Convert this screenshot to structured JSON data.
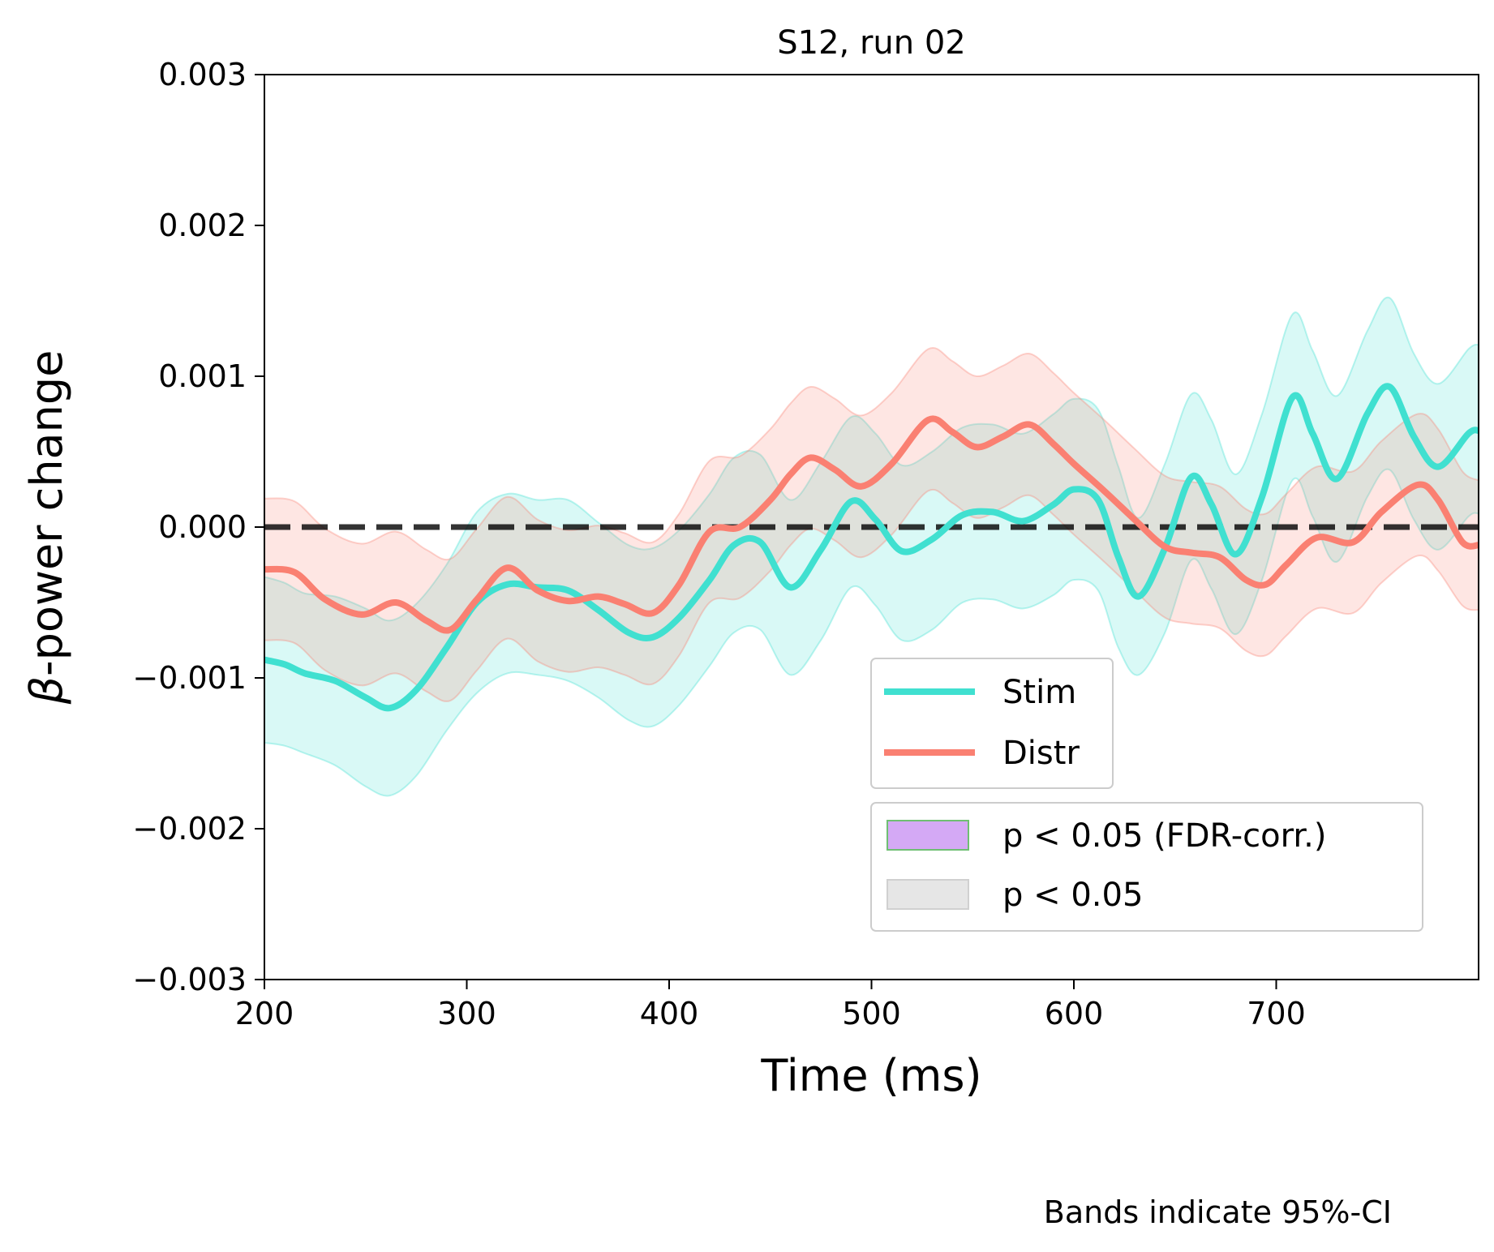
{
  "chart_data": {
    "type": "line",
    "title": "S12, run 02",
    "xlabel": "Time (ms)",
    "ylabel": "-power change",
    "ylabel_symbol": "β",
    "xlim": [
      200,
      800
    ],
    "ylim": [
      -0.003,
      0.003
    ],
    "xticks": [
      200,
      300,
      400,
      500,
      600,
      700
    ],
    "xtick_labels": [
      "200",
      "300",
      "400",
      "500",
      "600",
      "700"
    ],
    "yticks": [
      -0.003,
      -0.002,
      -0.001,
      0.0,
      0.001,
      0.002,
      0.003
    ],
    "ytick_labels": [
      "−0.003",
      "−0.002",
      "−0.001",
      "0.000",
      "0.001",
      "0.002",
      "0.003"
    ],
    "reference_line": {
      "y": 0.0,
      "style": "dashed",
      "color": "#000000"
    },
    "note": "Bands indicate 95%-CI",
    "series": [
      {
        "name": "Stim",
        "color": "#40E0D0",
        "band_color": "#40E0D0",
        "x": [
          200,
          210,
          220,
          235,
          250,
          262,
          275,
          290,
          305,
          320,
          335,
          350,
          365,
          380,
          392,
          405,
          420,
          432,
          445,
          460,
          475,
          490,
          502,
          515,
          530,
          545,
          560,
          575,
          590,
          600,
          612,
          622,
          632,
          645,
          658,
          668,
          680,
          693,
          708,
          718,
          730,
          745,
          756,
          768,
          780,
          795,
          800
        ],
        "y": [
          -0.00088,
          -0.00091,
          -0.00097,
          -0.00102,
          -0.00113,
          -0.0012,
          -0.00108,
          -0.0008,
          -0.0005,
          -0.00038,
          -0.0004,
          -0.00042,
          -0.00055,
          -0.0007,
          -0.00073,
          -0.0006,
          -0.00035,
          -0.00012,
          -0.0001,
          -0.0004,
          -0.00015,
          0.00017,
          5e-05,
          -0.00016,
          -8e-05,
          8e-05,
          0.0001,
          4e-05,
          0.00015,
          0.00025,
          0.00018,
          -0.0002,
          -0.00046,
          -0.00014,
          0.00033,
          0.00015,
          -0.00018,
          0.0002,
          0.00086,
          0.00062,
          0.00032,
          0.00075,
          0.00093,
          0.0006,
          0.0004,
          0.00062,
          0.00064
        ],
        "lower": [
          -0.00143,
          -0.00145,
          -0.0015,
          -0.00158,
          -0.00172,
          -0.00178,
          -0.00165,
          -0.00135,
          -0.0011,
          -0.00097,
          -0.00098,
          -0.00102,
          -0.00113,
          -0.00128,
          -0.00132,
          -0.00118,
          -0.00092,
          -0.0007,
          -0.00068,
          -0.00098,
          -0.00075,
          -0.0004,
          -0.00052,
          -0.00075,
          -0.00068,
          -0.0005,
          -0.00048,
          -0.00054,
          -0.00045,
          -0.00035,
          -0.00042,
          -0.0008,
          -0.00098,
          -0.0007,
          -0.00022,
          -0.00041,
          -0.00071,
          -0.00035,
          0.00031,
          7e-05,
          -0.00023,
          0.0002,
          0.00038,
          5e-05,
          -0.00015,
          7e-05,
          9e-05
        ],
        "upper": [
          -0.00033,
          -0.00037,
          -0.00044,
          -0.00046,
          -0.00054,
          -0.00062,
          -0.00051,
          -0.00025,
          0.0001,
          0.00022,
          0.00018,
          0.00018,
          3e-05,
          -0.00012,
          -0.00014,
          -2e-05,
          0.00022,
          0.00046,
          0.00048,
          0.00018,
          0.00043,
          0.00073,
          0.00062,
          0.00041,
          0.0005,
          0.00066,
          0.00068,
          0.00062,
          0.00075,
          0.00085,
          0.00078,
          0.0004,
          6e-05,
          0.00042,
          0.00088,
          0.00071,
          0.00035,
          0.00075,
          0.00141,
          0.00117,
          0.00087,
          0.0013,
          0.00152,
          0.00115,
          0.00095,
          0.00118,
          0.00121
        ]
      },
      {
        "name": "Distr",
        "color": "#FA8072",
        "band_color": "#FA8072",
        "x": [
          200,
          215,
          230,
          248,
          265,
          280,
          292,
          305,
          320,
          335,
          350,
          365,
          378,
          392,
          405,
          420,
          435,
          450,
          460,
          470,
          482,
          495,
          510,
          528,
          540,
          552,
          565,
          578,
          590,
          600,
          615,
          630,
          645,
          658,
          672,
          685,
          695,
          705,
          720,
          738,
          752,
          770,
          780,
          792,
          800
        ],
        "y": [
          -0.00028,
          -0.0003,
          -0.00048,
          -0.00058,
          -0.0005,
          -0.00062,
          -0.00068,
          -0.00048,
          -0.00027,
          -0.00042,
          -0.00049,
          -0.00046,
          -0.00051,
          -0.00057,
          -0.00038,
          -3e-05,
          0.0,
          0.00018,
          0.00035,
          0.00046,
          0.00038,
          0.00027,
          0.00042,
          0.00071,
          0.00063,
          0.00053,
          0.0006,
          0.00068,
          0.00055,
          0.00042,
          0.00024,
          5e-05,
          -0.00013,
          -0.00017,
          -0.0002,
          -0.00035,
          -0.00038,
          -0.00025,
          -7e-05,
          -0.0001,
          0.0001,
          0.00028,
          0.00018,
          -0.0001,
          -0.00012
        ],
        "lower": [
          -0.00075,
          -0.00077,
          -0.00095,
          -0.00105,
          -0.00097,
          -0.00109,
          -0.00115,
          -0.00095,
          -0.00074,
          -0.00089,
          -0.00096,
          -0.00093,
          -0.00098,
          -0.00104,
          -0.00085,
          -0.0005,
          -0.00047,
          -0.00029,
          -0.00012,
          -1e-05,
          -9e-05,
          -0.0002,
          -5e-05,
          0.00024,
          0.00016,
          6e-05,
          0.00013,
          0.00021,
          8e-05,
          -5e-05,
          -0.00023,
          -0.00042,
          -0.0006,
          -0.00064,
          -0.00067,
          -0.00082,
          -0.00085,
          -0.00072,
          -0.00054,
          -0.00057,
          -0.00037,
          -0.00019,
          -0.00029,
          -0.00052,
          -0.00055
        ],
        "upper": [
          0.00019,
          0.00017,
          -1e-05,
          -0.00011,
          -3e-05,
          -0.00015,
          -0.00021,
          -1e-05,
          0.0002,
          5e-05,
          -2e-05,
          1e-05,
          -4e-05,
          -0.0001,
          9e-05,
          0.00044,
          0.00047,
          0.00065,
          0.00082,
          0.00093,
          0.00085,
          0.00074,
          0.00089,
          0.00118,
          0.0011,
          0.001,
          0.00107,
          0.00115,
          0.00102,
          0.00089,
          0.00071,
          0.00052,
          0.00034,
          0.0003,
          0.00027,
          0.00012,
          9e-05,
          0.00022,
          0.0004,
          0.00037,
          0.00057,
          0.00075,
          0.00065,
          0.00037,
          0.00031
        ]
      }
    ],
    "legend": {
      "placement": "lower-right",
      "line_entries": [
        {
          "label": "Stim",
          "color": "#40E0D0"
        },
        {
          "label": "Distr",
          "color": "#FA8072"
        }
      ],
      "patch_entries": [
        {
          "label": "p < 0.05 (FDR-corr.)",
          "fill": "#D4A9F5",
          "edge": "#6FBF73"
        },
        {
          "label": "p < 0.05",
          "fill": "#E6E6E6",
          "edge": "#D0D0D0"
        }
      ]
    }
  }
}
